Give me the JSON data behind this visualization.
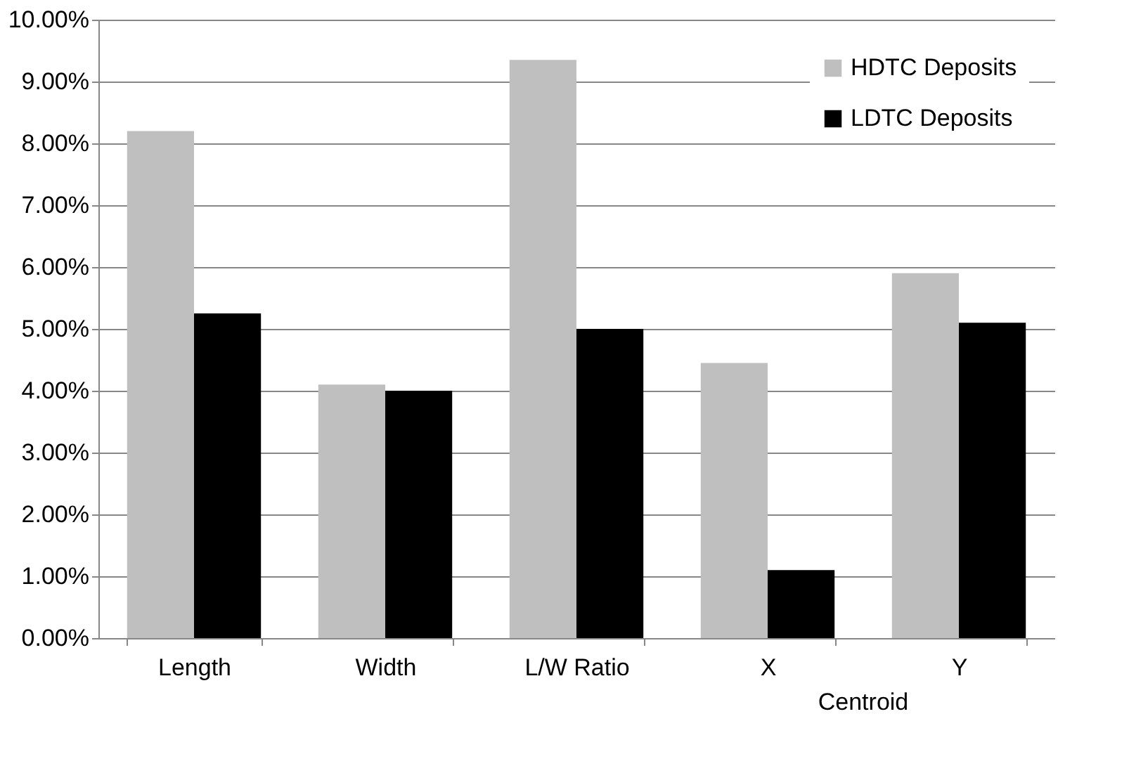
{
  "chart_data": {
    "type": "bar",
    "categories": [
      "Length",
      "Width",
      "L/W Ratio",
      "X",
      "Y"
    ],
    "series": [
      {
        "name": "HDTC Deposits",
        "color": "#bfbfbf",
        "values": [
          8.2,
          4.1,
          9.35,
          4.45,
          5.9
        ]
      },
      {
        "name": "LDTC Deposits",
        "color": "#000000",
        "values": [
          5.25,
          4.0,
          5.0,
          1.1,
          5.1
        ]
      }
    ],
    "ylim": [
      0,
      10
    ],
    "yticks": [
      {
        "value": 0,
        "label": "0.00%"
      },
      {
        "value": 1,
        "label": "1.00%"
      },
      {
        "value": 2,
        "label": "2.00%"
      },
      {
        "value": 3,
        "label": "3.00%"
      },
      {
        "value": 4,
        "label": "4.00%"
      },
      {
        "value": 5,
        "label": "5.00%"
      },
      {
        "value": 6,
        "label": "6.00%"
      },
      {
        "value": 7,
        "label": "7.00%"
      },
      {
        "value": 8,
        "label": "8.00%"
      },
      {
        "value": 9,
        "label": "9.00%"
      },
      {
        "value": 10,
        "label": "10.00%"
      }
    ],
    "annotations": [
      "Centroid"
    ],
    "grid": "y",
    "legend": "top right"
  }
}
